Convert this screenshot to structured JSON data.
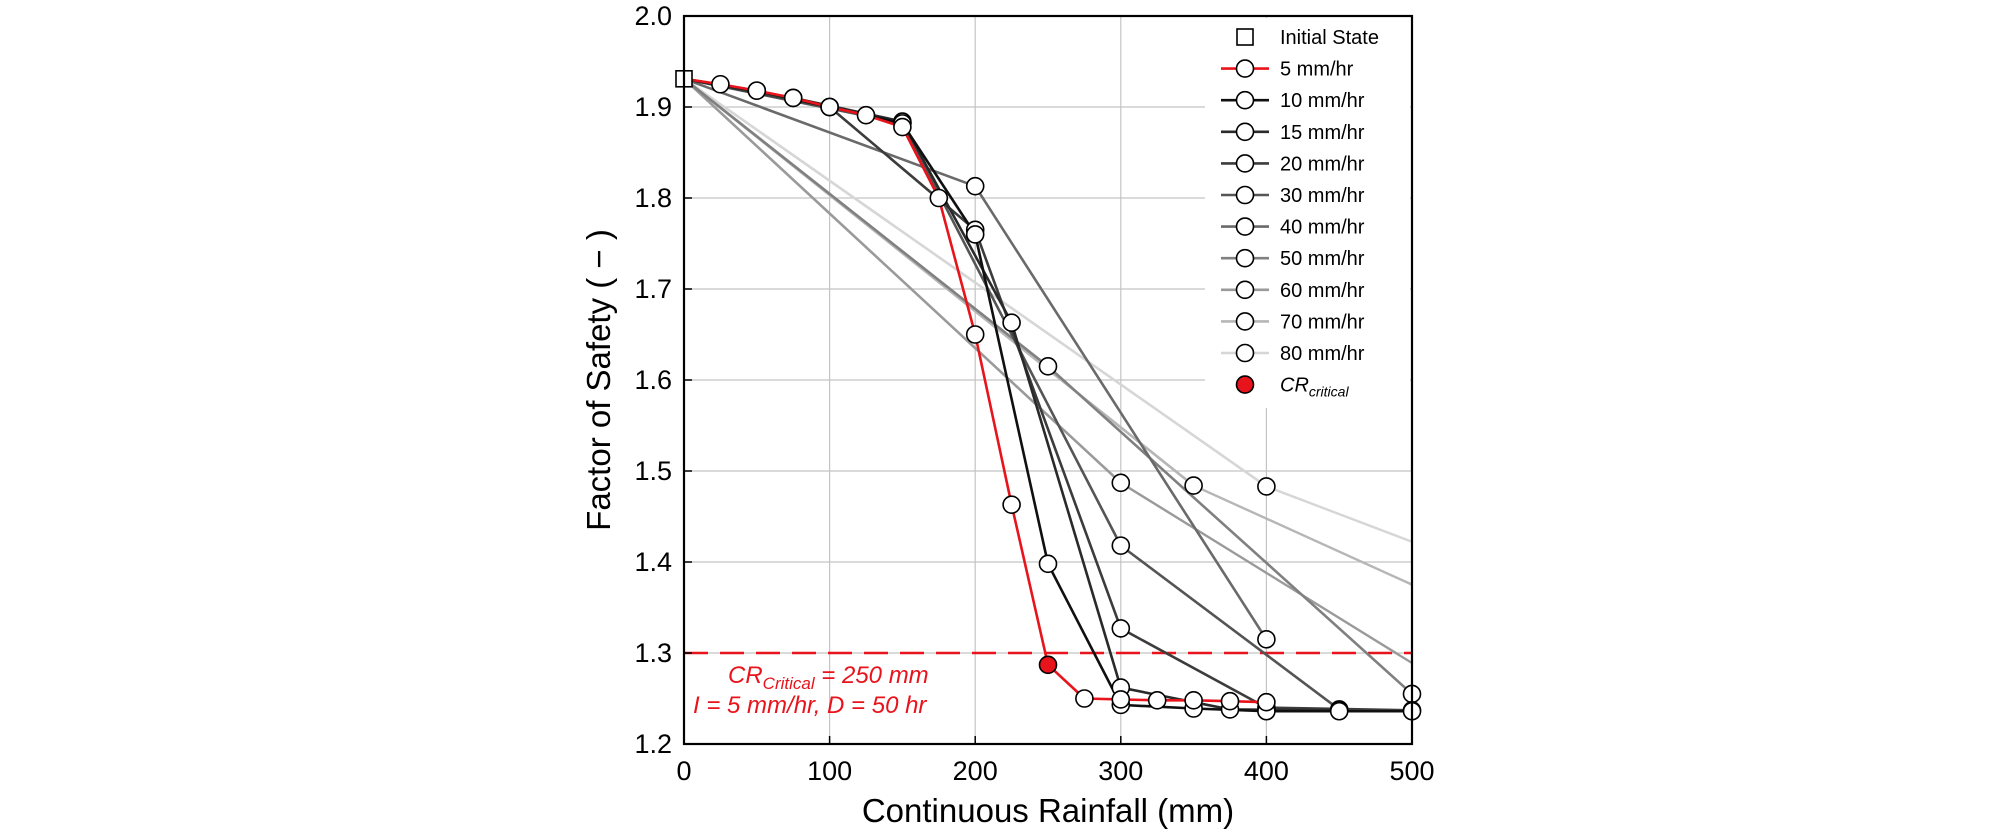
{
  "chart_data": {
    "type": "line",
    "title": "",
    "xlabel": "Continuous Rainfall (mm)",
    "ylabel": "Factor of Safety ( − )",
    "xlim": [
      0,
      500
    ],
    "ylim": [
      1.2,
      2.0
    ],
    "xticks": [
      "0",
      "100",
      "200",
      "300",
      "400",
      "500"
    ],
    "yticks": [
      "1.2",
      "1.3",
      "1.4",
      "1.5",
      "1.6",
      "1.7",
      "1.8",
      "1.9",
      "2.0"
    ],
    "grid": true,
    "legend_position": "top-right",
    "initial_state": {
      "name": "Initial State",
      "x": 0,
      "y": 1.931
    },
    "series": [
      {
        "name": "5 mm/hr",
        "color": "#e8141c",
        "x": [
          0,
          25,
          50,
          75,
          100,
          125,
          150,
          175,
          200,
          225,
          250,
          275,
          300,
          325,
          350,
          375,
          400
        ],
        "y": [
          1.931,
          1.925,
          1.918,
          1.91,
          1.9,
          1.891,
          1.878,
          1.8,
          1.65,
          1.463,
          1.287,
          1.25,
          1.249,
          1.248,
          1.248,
          1.247,
          1.246
        ]
      },
      {
        "name": "10 mm/hr",
        "color": "#101010",
        "x": [
          0,
          50,
          100,
          150,
          200,
          250,
          300,
          350,
          400,
          450,
          500
        ],
        "y": [
          1.931,
          1.918,
          1.9,
          1.882,
          1.76,
          1.398,
          1.243,
          1.239,
          1.236,
          1.236,
          1.236
        ]
      },
      {
        "name": "15 mm/hr",
        "color": "#2a2a2a",
        "x": [
          0,
          75,
          150,
          225,
          300,
          375,
          450
        ],
        "y": [
          1.931,
          1.91,
          1.884,
          1.663,
          1.262,
          1.238,
          1.237
        ]
      },
      {
        "name": "20 mm/hr",
        "color": "#3c3c3c",
        "x": [
          0,
          100,
          200,
          300,
          400,
          500
        ],
        "y": [
          1.931,
          1.9,
          1.765,
          1.327,
          1.24,
          1.237
        ]
      },
      {
        "name": "30 mm/hr",
        "color": "#555555",
        "x": [
          0,
          150,
          300,
          450
        ],
        "y": [
          1.931,
          1.882,
          1.418,
          1.238
        ]
      },
      {
        "name": "40 mm/hr",
        "color": "#6a6a6a",
        "x": [
          0,
          200,
          400
        ],
        "y": [
          1.931,
          1.813,
          1.315
        ]
      },
      {
        "name": "50 mm/hr",
        "color": "#808080",
        "x": [
          0,
          250,
          500
        ],
        "y": [
          1.931,
          1.615,
          1.255
        ]
      },
      {
        "name": "60 mm/hr",
        "color": "#9a9a9a",
        "x": [
          0,
          300
        ],
        "y": [
          1.931,
          1.487
        ]
      },
      {
        "name": "70 mm/hr",
        "color": "#b6b6b6",
        "x": [
          0,
          350
        ],
        "y": [
          1.931,
          1.484
        ]
      },
      {
        "name": "80 mm/hr",
        "color": "#d6d6d6",
        "x": [
          0,
          400
        ],
        "y": [
          1.931,
          1.483
        ]
      }
    ],
    "extensions": [
      {
        "series": "60 mm/hr",
        "x": [
          300,
          600
        ],
        "y": [
          1.487,
          1.19
        ]
      },
      {
        "series": "70 mm/hr",
        "x": [
          350,
          700
        ],
        "y": [
          1.484,
          1.23
        ]
      },
      {
        "series": "80 mm/hr",
        "x": [
          400,
          800
        ],
        "y": [
          1.483,
          1.24
        ]
      }
    ],
    "critical_threshold": {
      "y": 1.3,
      "color": "#e8141c"
    },
    "critical_point": {
      "label_base": "CR",
      "label_sub": "critical",
      "x": 250,
      "y": 1.287,
      "color": "#e8141c"
    },
    "annotation": {
      "line1_base": "CR",
      "line1_sub": "Critical",
      "line1_rest": " = 250 mm",
      "line2": "I = 5 mm/hr, D = 50 hr",
      "color": "#e8141c"
    }
  }
}
